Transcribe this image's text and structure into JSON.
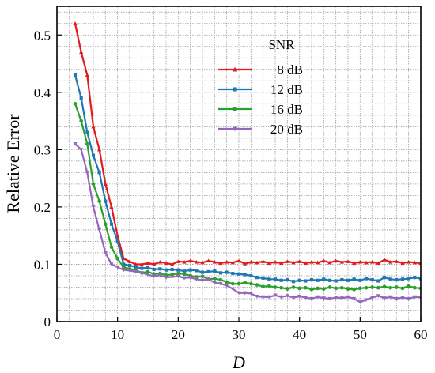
{
  "chart_data": {
    "type": "line",
    "title": "",
    "xlabel": "D",
    "ylabel": "Relative Error",
    "xlim": [
      0,
      60
    ],
    "ylim": [
      0,
      0.55
    ],
    "xticks": [
      0,
      10,
      20,
      30,
      40,
      50,
      60
    ],
    "yticks": [
      0,
      0.1,
      0.2,
      0.3,
      0.4,
      0.5
    ],
    "xtick_labels": [
      "0",
      "10",
      "20",
      "30",
      "40",
      "50",
      "60"
    ],
    "ytick_labels": [
      "0",
      "0.1",
      "0.2",
      "0.3",
      "0.4",
      "0.5"
    ],
    "grid": "dotted major and minor",
    "legend_title": "SNR",
    "legend_position": "upper-right",
    "x": [
      3,
      4,
      5,
      6,
      7,
      8,
      9,
      10,
      11,
      12,
      13,
      14,
      15,
      16,
      17,
      18,
      19,
      20,
      21,
      22,
      23,
      24,
      25,
      26,
      27,
      28,
      29,
      30,
      31,
      32,
      33,
      34,
      35,
      36,
      37,
      38,
      39,
      40,
      41,
      42,
      43,
      44,
      45,
      46,
      47,
      48,
      49,
      50,
      51,
      52,
      53,
      54,
      55,
      56,
      57,
      58,
      59,
      60
    ],
    "series": [
      {
        "name": "8 dB",
        "color": "#e31a1c",
        "marker": "triangle-up",
        "values": [
          0.52,
          0.47,
          0.43,
          0.34,
          0.3,
          0.24,
          0.2,
          0.15,
          0.11,
          0.105,
          0.1,
          0.1,
          0.102,
          0.1,
          0.104,
          0.102,
          0.1,
          0.105,
          0.104,
          0.106,
          0.104,
          0.103,
          0.106,
          0.104,
          0.102,
          0.104,
          0.103,
          0.106,
          0.101,
          0.104,
          0.103,
          0.105,
          0.102,
          0.104,
          0.102,
          0.105,
          0.103,
          0.105,
          0.102,
          0.104,
          0.103,
          0.106,
          0.103,
          0.106,
          0.104,
          0.105,
          0.102,
          0.104,
          0.103,
          0.104,
          0.102,
          0.108,
          0.104,
          0.105,
          0.102,
          0.104,
          0.103,
          0.102
        ]
      },
      {
        "name": "12 dB",
        "color": "#1f77b4",
        "marker": "square",
        "values": [
          0.43,
          0.39,
          0.33,
          0.29,
          0.26,
          0.21,
          0.17,
          0.14,
          0.1,
          0.098,
          0.095,
          0.093,
          0.094,
          0.091,
          0.092,
          0.09,
          0.091,
          0.09,
          0.088,
          0.09,
          0.089,
          0.086,
          0.087,
          0.088,
          0.085,
          0.086,
          0.084,
          0.083,
          0.082,
          0.08,
          0.077,
          0.076,
          0.074,
          0.074,
          0.072,
          0.073,
          0.07,
          0.072,
          0.071,
          0.073,
          0.072,
          0.074,
          0.072,
          0.071,
          0.073,
          0.072,
          0.074,
          0.072,
          0.075,
          0.073,
          0.071,
          0.077,
          0.074,
          0.073,
          0.074,
          0.075,
          0.077,
          0.075
        ]
      },
      {
        "name": "16 dB",
        "color": "#2ca02c",
        "marker": "circle",
        "values": [
          0.38,
          0.35,
          0.31,
          0.24,
          0.21,
          0.17,
          0.13,
          0.11,
          0.095,
          0.092,
          0.09,
          0.085,
          0.087,
          0.083,
          0.084,
          0.081,
          0.082,
          0.084,
          0.083,
          0.08,
          0.078,
          0.079,
          0.074,
          0.075,
          0.073,
          0.069,
          0.066,
          0.066,
          0.068,
          0.066,
          0.064,
          0.061,
          0.062,
          0.06,
          0.059,
          0.057,
          0.06,
          0.058,
          0.059,
          0.056,
          0.058,
          0.057,
          0.06,
          0.058,
          0.059,
          0.057,
          0.056,
          0.058,
          0.059,
          0.06,
          0.059,
          0.061,
          0.059,
          0.06,
          0.058,
          0.062,
          0.059,
          0.058
        ]
      },
      {
        "name": "20 dB",
        "color": "#9467bd",
        "marker": "triangle-down",
        "values": [
          0.31,
          0.3,
          0.26,
          0.2,
          0.16,
          0.12,
          0.1,
          0.095,
          0.09,
          0.089,
          0.087,
          0.085,
          0.082,
          0.079,
          0.081,
          0.077,
          0.078,
          0.079,
          0.076,
          0.077,
          0.074,
          0.072,
          0.074,
          0.068,
          0.066,
          0.063,
          0.057,
          0.05,
          0.05,
          0.049,
          0.044,
          0.043,
          0.043,
          0.046,
          0.043,
          0.045,
          0.042,
          0.044,
          0.042,
          0.04,
          0.043,
          0.041,
          0.04,
          0.042,
          0.041,
          0.043,
          0.04,
          0.034,
          0.038,
          0.042,
          0.045,
          0.041,
          0.043,
          0.04,
          0.042,
          0.04,
          0.043,
          0.042
        ]
      }
    ]
  }
}
